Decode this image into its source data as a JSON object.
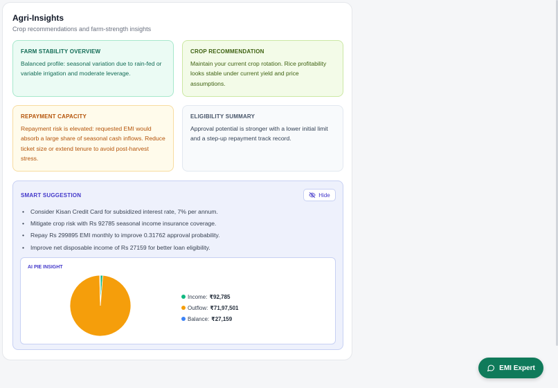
{
  "header": {
    "title": "Agri-Insights",
    "subtitle": "Crop recommendations and farm-strength insights"
  },
  "cards": {
    "stability": {
      "title": "FARM STABILITY OVERVIEW",
      "body": "Balanced profile: seasonal variation due to rain-fed or variable irrigation and moderate leverage."
    },
    "crop": {
      "title": "CROP RECOMMENDATION",
      "body": "Maintain your current crop rotation. Rice profitability looks stable under current yield and price assumptions."
    },
    "repayment": {
      "title": "REPAYMENT CAPACITY",
      "body": "Repayment risk is elevated: requested EMI would absorb a large share of seasonal cash inflows. Reduce ticket size or extend tenure to avoid post-harvest stress."
    },
    "eligibility": {
      "title": "ELIGIBILITY SUMMARY",
      "body": "Approval potential is stronger with a lower initial limit and a step-up repayment track record."
    }
  },
  "smart": {
    "title": "SMART SUGGESTION",
    "hide_label": "Hide",
    "suggestions": [
      "Consider Kisan Credit Card for subsidized interest rate, 7% per annum.",
      "Mitigate crop risk with Rs 92785 seasonal income insurance coverage.",
      "Repay Rs 299895 EMI monthly to improve 0.31762 approval probability.",
      "Improve net disposable income of Rs 27159 for better loan eligibility."
    ]
  },
  "pie": {
    "title": "AI PIE INSIGHT",
    "legend": [
      {
        "label": "Income: ",
        "value": "₹92,785",
        "color": "#10b981"
      },
      {
        "label": "Outflow: ",
        "value": "₹71,97,501",
        "color": "#f59e0b"
      },
      {
        "label": "Balance: ",
        "value": "₹27,159",
        "color": "#3b82f6"
      }
    ]
  },
  "chart_data": {
    "type": "pie",
    "categories": [
      "Income",
      "Outflow",
      "Balance"
    ],
    "values": [
      92785,
      7197501,
      27159
    ],
    "colors": [
      "#10b981",
      "#f59e0b",
      "#3b82f6"
    ]
  },
  "fab": {
    "label": "EMI Expert"
  }
}
